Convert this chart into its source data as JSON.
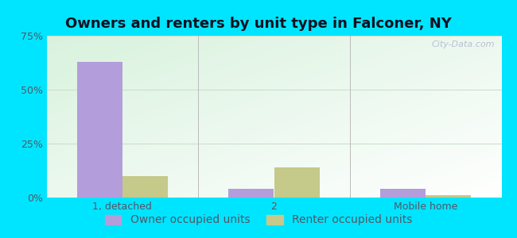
{
  "title": "Owners and renters by unit type in Falconer, NY",
  "categories": [
    "1, detached",
    "2",
    "Mobile home"
  ],
  "owner_values": [
    63,
    4,
    4
  ],
  "renter_values": [
    10,
    14,
    1
  ],
  "owner_color": "#b39ddb",
  "renter_color": "#c5c98a",
  "ylim": [
    0,
    75
  ],
  "yticks": [
    0,
    25,
    50,
    75
  ],
  "yticklabels": [
    "0%",
    "25%",
    "50%",
    "75%"
  ],
  "background_outer": "#00e5ff",
  "title_fontsize": 13,
  "tick_fontsize": 9,
  "legend_fontsize": 10,
  "bar_width": 0.3,
  "watermark": "City-Data.com",
  "watermark_icon": "Ⓘ",
  "grid_color": "#c8ddc8",
  "separator_color": "#bbbbbb",
  "tick_color": "#555566",
  "title_color": "#111122"
}
